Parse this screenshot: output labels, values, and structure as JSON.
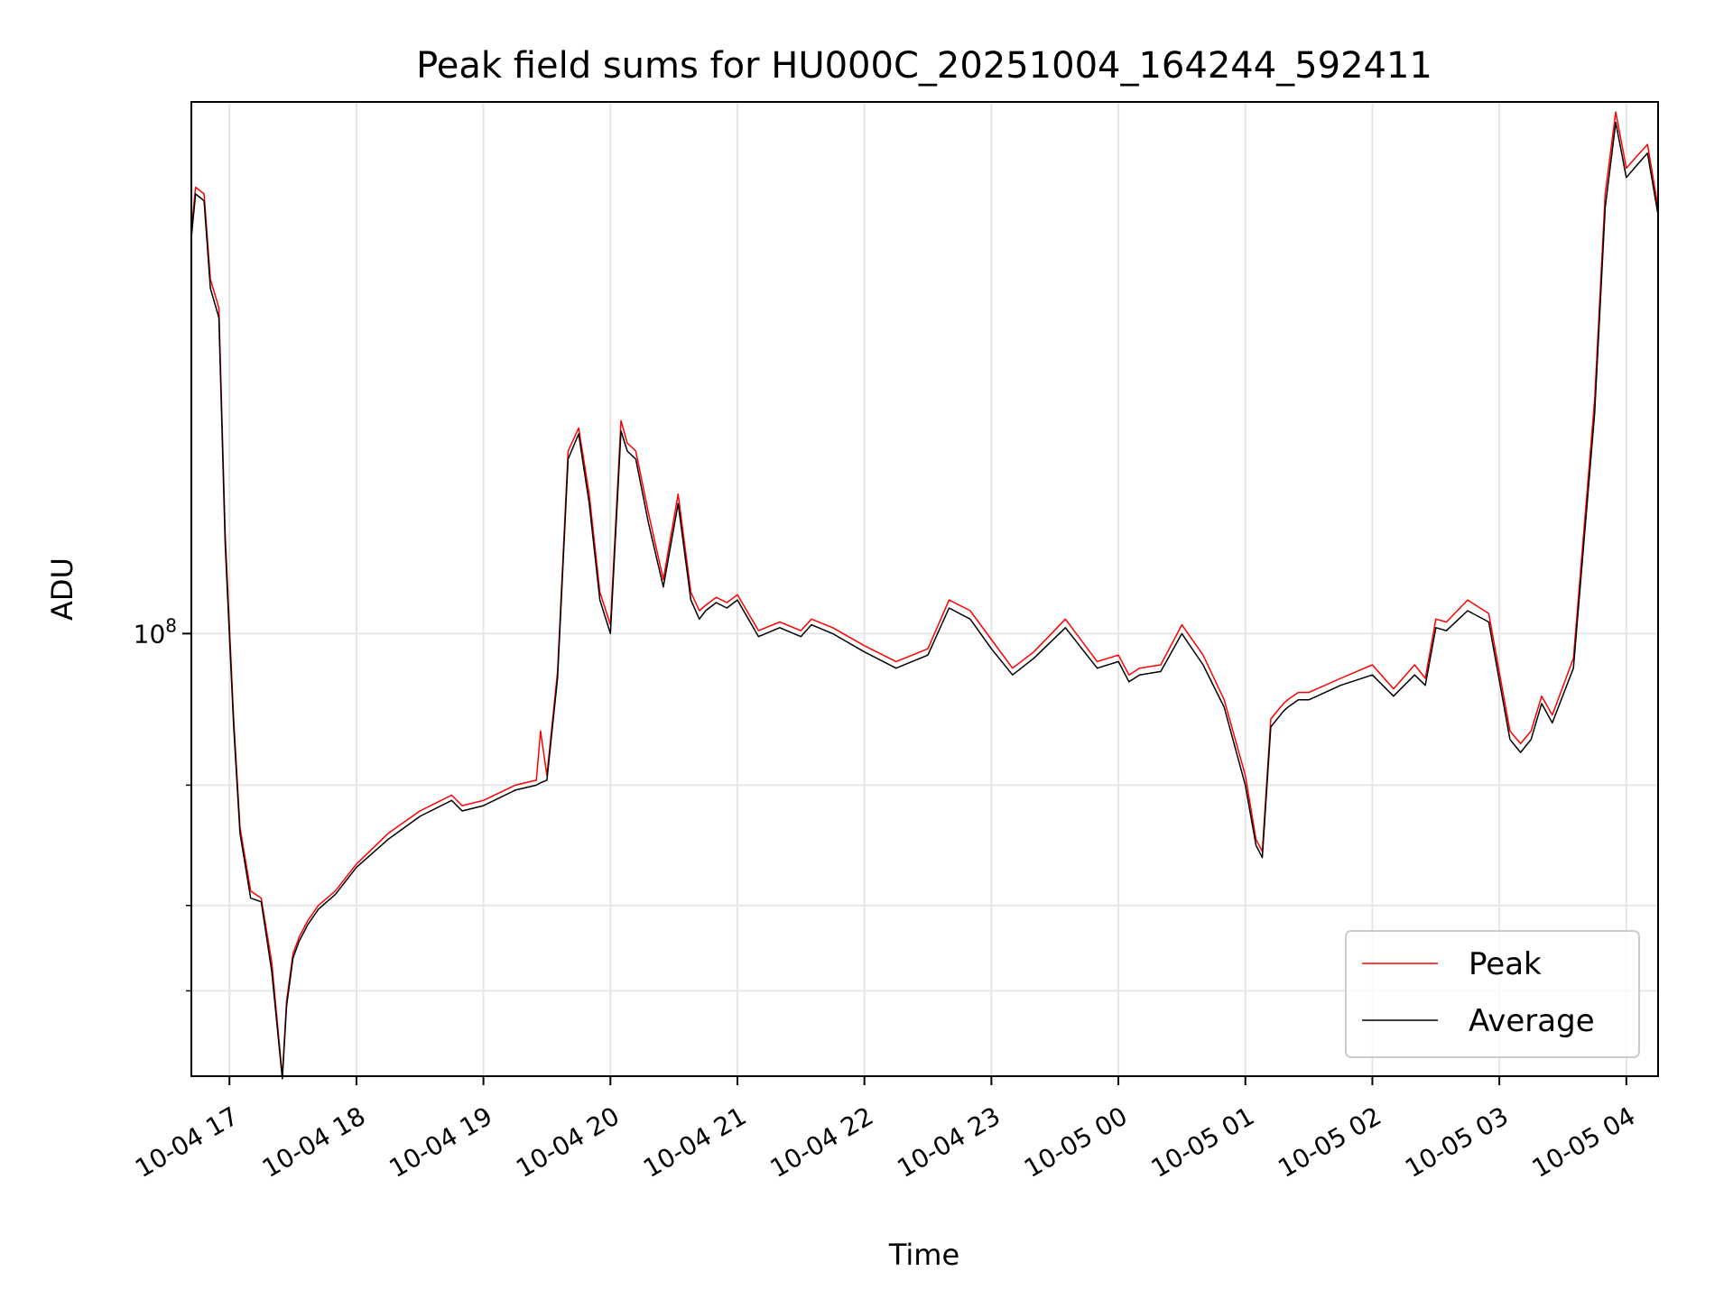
{
  "chart_data": {
    "type": "line",
    "title": "Peak field sums for HU000C_20251004_164244_592411",
    "xlabel": "Time",
    "ylabel": "ADU",
    "yscale": "log",
    "ylim": [
      22500000,
      600000000
    ],
    "xlim": [
      "2025-10-04 16:42",
      "2025-10-05 04:15"
    ],
    "grid": true,
    "legend_position": "lower-right",
    "x_tick_labels": [
      "10-04 17",
      "10-04 18",
      "10-04 19",
      "10-04 20",
      "10-04 21",
      "10-04 22",
      "10-04 23",
      "10-05 00",
      "10-05 01",
      "10-05 02",
      "10-05 03",
      "10-05 04"
    ],
    "y_tick_labels": [
      {
        "base": "10",
        "exp": "8"
      }
    ],
    "x": [
      "2025-10-04 16:42",
      "2025-10-04 16:44",
      "2025-10-04 16:48",
      "2025-10-04 16:51",
      "2025-10-04 16:55",
      "2025-10-04 16:58",
      "2025-10-04 17:02",
      "2025-10-04 17:05",
      "2025-10-04 17:10",
      "2025-10-04 17:15",
      "2025-10-04 17:20",
      "2025-10-04 17:25",
      "2025-10-04 17:27",
      "2025-10-04 17:30",
      "2025-10-04 17:33",
      "2025-10-04 17:37",
      "2025-10-04 17:42",
      "2025-10-04 17:50",
      "2025-10-04 18:00",
      "2025-10-04 18:15",
      "2025-10-04 18:30",
      "2025-10-04 18:45",
      "2025-10-04 18:50",
      "2025-10-04 19:00",
      "2025-10-04 19:15",
      "2025-10-04 19:25",
      "2025-10-04 19:27",
      "2025-10-04 19:30",
      "2025-10-04 19:35",
      "2025-10-04 19:40",
      "2025-10-04 19:45",
      "2025-10-04 19:50",
      "2025-10-04 19:55",
      "2025-10-04 20:00",
      "2025-10-04 20:05",
      "2025-10-04 20:08",
      "2025-10-04 20:12",
      "2025-10-04 20:18",
      "2025-10-04 20:25",
      "2025-10-04 20:32",
      "2025-10-04 20:38",
      "2025-10-04 20:42",
      "2025-10-04 20:45",
      "2025-10-04 20:50",
      "2025-10-04 20:55",
      "2025-10-04 21:00",
      "2025-10-04 21:10",
      "2025-10-04 21:20",
      "2025-10-04 21:30",
      "2025-10-04 21:35",
      "2025-10-04 21:45",
      "2025-10-04 22:00",
      "2025-10-04 22:15",
      "2025-10-04 22:30",
      "2025-10-04 22:40",
      "2025-10-04 22:50",
      "2025-10-04 23:00",
      "2025-10-04 23:10",
      "2025-10-04 23:20",
      "2025-10-04 23:35",
      "2025-10-04 23:50",
      "2025-10-05 00:00",
      "2025-10-05 00:05",
      "2025-10-05 00:10",
      "2025-10-05 00:20",
      "2025-10-05 00:30",
      "2025-10-05 00:40",
      "2025-10-05 00:50",
      "2025-10-05 01:00",
      "2025-10-05 01:05",
      "2025-10-05 01:08",
      "2025-10-05 01:12",
      "2025-10-05 01:18",
      "2025-10-05 01:20",
      "2025-10-05 01:25",
      "2025-10-05 01:30",
      "2025-10-05 01:45",
      "2025-10-05 02:00",
      "2025-10-05 02:10",
      "2025-10-05 02:20",
      "2025-10-05 02:25",
      "2025-10-05 02:30",
      "2025-10-05 02:35",
      "2025-10-05 02:45",
      "2025-10-05 02:55",
      "2025-10-05 03:05",
      "2025-10-05 03:10",
      "2025-10-05 03:15",
      "2025-10-05 03:20",
      "2025-10-05 03:25",
      "2025-10-05 03:35",
      "2025-10-05 03:45",
      "2025-10-05 03:50",
      "2025-10-05 03:55",
      "2025-10-05 04:00",
      "2025-10-05 04:05",
      "2025-10-05 04:10",
      "2025-10-05 04:15"
    ],
    "series": [
      {
        "name": "Peak",
        "color": "#ff0000",
        "values": [
          390000000,
          450000000,
          440000000,
          330000000,
          300000000,
          140000000,
          75000000,
          52000000,
          42000000,
          41000000,
          33000000,
          22500000,
          29000000,
          34000000,
          36000000,
          38000000,
          40000000,
          42000000,
          46000000,
          51000000,
          55000000,
          58000000,
          56000000,
          57000000,
          60000000,
          61000000,
          72000000,
          62000000,
          88000000,
          185000000,
          200000000,
          160000000,
          115000000,
          103000000,
          205000000,
          190000000,
          185000000,
          150000000,
          120000000,
          160000000,
          115000000,
          108000000,
          110000000,
          113000000,
          111000000,
          114000000,
          101000000,
          104000000,
          101000000,
          105000000,
          102000000,
          96000000,
          91000000,
          95000000,
          112000000,
          108000000,
          98000000,
          89000000,
          94000000,
          105000000,
          91000000,
          93000000,
          87000000,
          89000000,
          90000000,
          103000000,
          93000000,
          80000000,
          62000000,
          50000000,
          48000000,
          75000000,
          79000000,
          80000000,
          82000000,
          82000000,
          86000000,
          90000000,
          83000000,
          90000000,
          86000000,
          105000000,
          104000000,
          112000000,
          107000000,
          72000000,
          69000000,
          72000000,
          81000000,
          76000000,
          92000000,
          220000000,
          440000000,
          580000000,
          480000000,
          500000000,
          520000000,
          420000000
        ]
      },
      {
        "name": "Average",
        "color": "#000000",
        "values": [
          380000000,
          440000000,
          430000000,
          320000000,
          290000000,
          135000000,
          73000000,
          51000000,
          41000000,
          40500000,
          32000000,
          22300000,
          28500000,
          33500000,
          35500000,
          37500000,
          39500000,
          41500000,
          45500000,
          50000000,
          54000000,
          57000000,
          55000000,
          56000000,
          59000000,
          60000000,
          60500000,
          61000000,
          86000000,
          180000000,
          196000000,
          155000000,
          112000000,
          100000000,
          198000000,
          185000000,
          180000000,
          145000000,
          117000000,
          155000000,
          112000000,
          105000000,
          108000000,
          111000000,
          109000000,
          112000000,
          99000000,
          102000000,
          99000000,
          103000000,
          100000000,
          94000000,
          89000000,
          93000000,
          109000000,
          105000000,
          95000000,
          87000000,
          92000000,
          102000000,
          89000000,
          91000000,
          85000000,
          87000000,
          88000000,
          100000000,
          90000000,
          78000000,
          60000000,
          49000000,
          47000000,
          73000000,
          77000000,
          78000000,
          80000000,
          80000000,
          84000000,
          87000000,
          81000000,
          87000000,
          84000000,
          102000000,
          101000000,
          108000000,
          104000000,
          70000000,
          67000000,
          70000000,
          79000000,
          74000000,
          89000000,
          210000000,
          420000000,
          560000000,
          465000000,
          485000000,
          505000000,
          410000000
        ]
      }
    ]
  }
}
